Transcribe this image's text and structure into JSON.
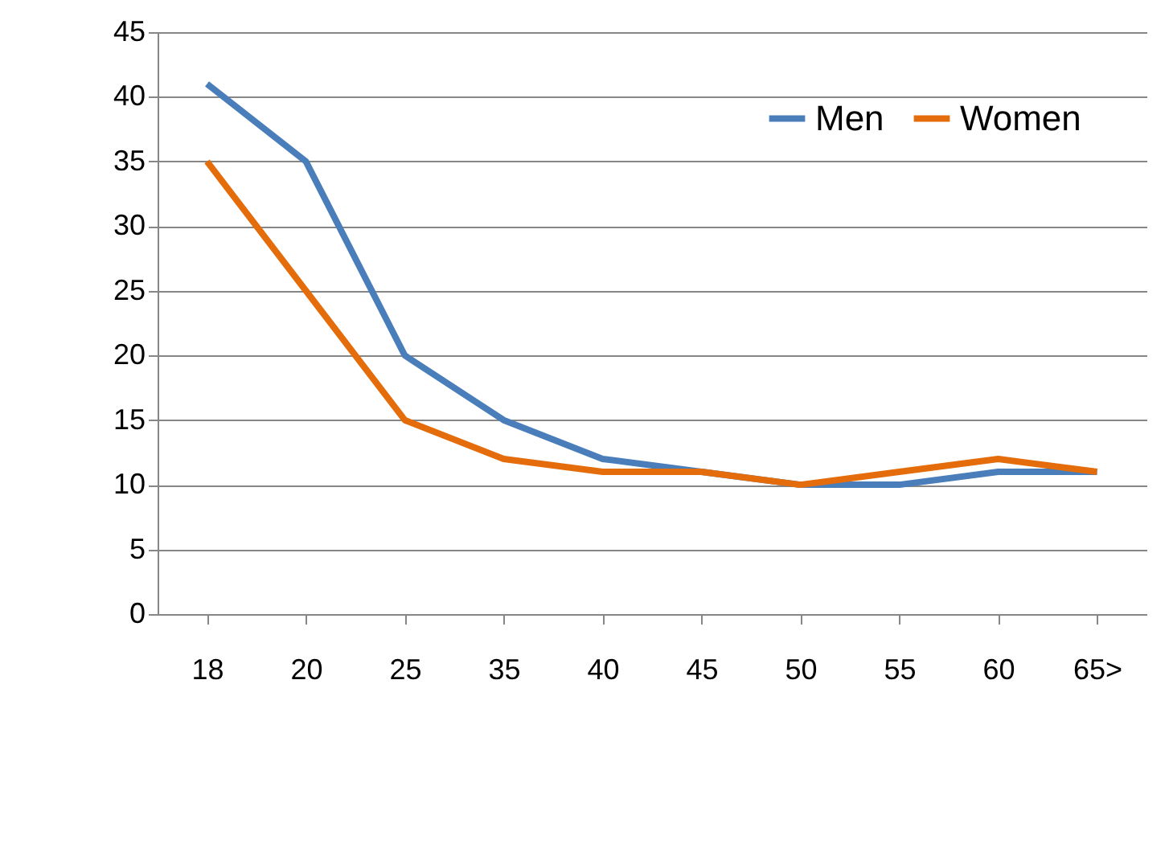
{
  "chart_data": {
    "type": "line",
    "categories": [
      "18",
      "20",
      "25",
      "35",
      "40",
      "45",
      "50",
      "55",
      "60",
      "65>"
    ],
    "series": [
      {
        "name": "Men",
        "color": "#4a7ebb",
        "values": [
          41,
          35,
          20,
          15,
          12,
          11,
          10,
          10,
          11,
          11
        ]
      },
      {
        "name": "Women",
        "color": "#e46c0a",
        "values": [
          35,
          25,
          15,
          12,
          11,
          11,
          10,
          11,
          12,
          11
        ]
      }
    ],
    "ylim": [
      0,
      45
    ],
    "yticks": [
      0,
      5,
      10,
      15,
      20,
      25,
      30,
      35,
      40,
      45
    ],
    "grid": "y",
    "legend": "top right",
    "marker": "none",
    "line_style": "solid"
  }
}
